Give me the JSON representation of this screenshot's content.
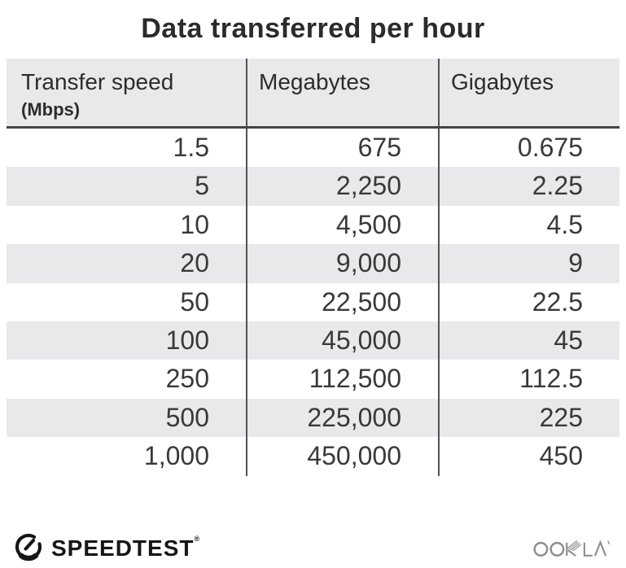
{
  "title": "Data transferred per hour",
  "table": {
    "columns": [
      {
        "label": "Transfer speed",
        "sublabel": "(Mbps)"
      },
      {
        "label": "Megabytes",
        "sublabel": ""
      },
      {
        "label": "Gigabytes",
        "sublabel": ""
      }
    ],
    "rows": [
      [
        "1.5",
        "675",
        "0.675"
      ],
      [
        "5",
        "2,250",
        "2.25"
      ],
      [
        "10",
        "4,500",
        "4.5"
      ],
      [
        "20",
        "9,000",
        "9"
      ],
      [
        "50",
        "22,500",
        "22.5"
      ],
      [
        "100",
        "45,000",
        "45"
      ],
      [
        "250",
        "112,500",
        "112.5"
      ],
      [
        "500",
        "225,000",
        "225"
      ],
      [
        "1,000",
        "450,000",
        "450"
      ]
    ]
  },
  "chart_data": {
    "type": "table",
    "title": "Data transferred per hour",
    "columns": [
      "Transfer speed (Mbps)",
      "Megabytes",
      "Gigabytes"
    ],
    "rows": [
      [
        1.5,
        675,
        0.675
      ],
      [
        5,
        2250,
        2.25
      ],
      [
        10,
        4500,
        4.5
      ],
      [
        20,
        9000,
        9
      ],
      [
        50,
        22500,
        22.5
      ],
      [
        100,
        45000,
        45
      ],
      [
        250,
        112500,
        112.5
      ],
      [
        500,
        225000,
        225
      ],
      [
        1000,
        450000,
        450
      ]
    ]
  },
  "footer": {
    "speedtest_label": "SPEEDTEST",
    "speedtest_trademark": "®",
    "ookla_label": "OOKLA"
  },
  "colors": {
    "stripe": "#e9e9ec",
    "divider": "#515156",
    "ookla_gray": "#8e8e8e",
    "text": "#39393b"
  }
}
